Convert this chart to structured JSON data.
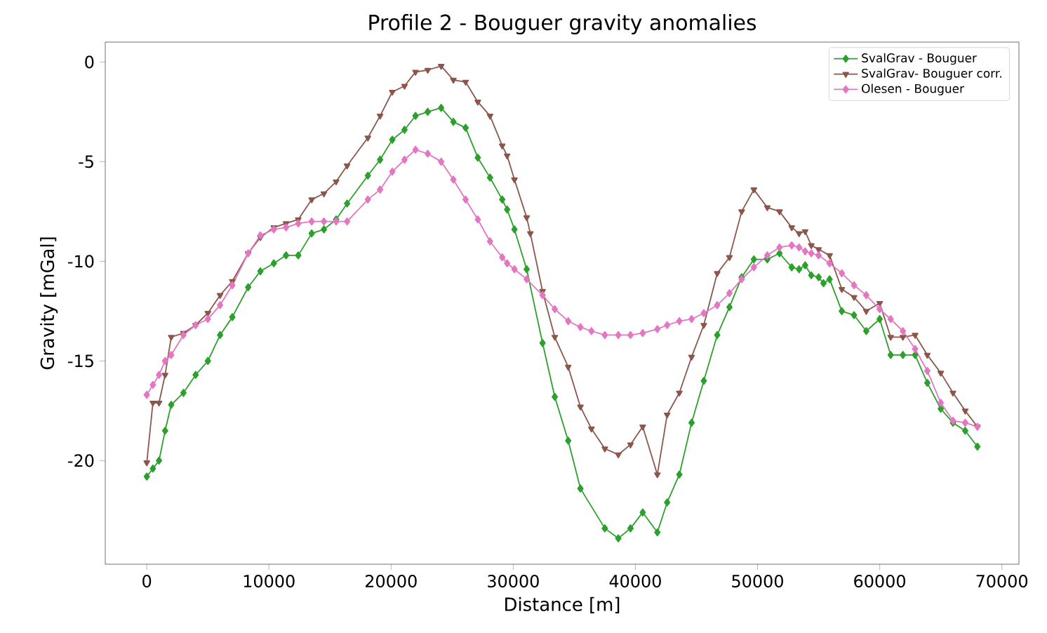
{
  "chart_data": {
    "type": "line",
    "title": "Profile 2 - Bouguer gravity anomalies",
    "xlabel": "Distance [m]",
    "ylabel": "Gravity [mGal]",
    "xlim": [
      -3400,
      71400
    ],
    "ylim": [
      -25.2,
      1.0
    ],
    "xticks": [
      0,
      10000,
      20000,
      30000,
      40000,
      50000,
      60000,
      70000
    ],
    "yticks": [
      -20,
      -15,
      -10,
      -5,
      0
    ],
    "grid": false,
    "legend": "top right",
    "line_style": "solid",
    "series": [
      {
        "name": "SvalGrav - Bouguer",
        "color": "#2ca02c",
        "marker": "diamond",
        "x": [
          0,
          500,
          1000,
          1500,
          2000,
          3000,
          4000,
          5000,
          6000,
          7000,
          8300,
          9300,
          10400,
          11400,
          12400,
          13500,
          14500,
          15500,
          16400,
          18100,
          19100,
          20100,
          21100,
          22000,
          23000,
          24100,
          25100,
          26100,
          27100,
          28100,
          29100,
          29500,
          30100,
          31100,
          32400,
          33400,
          34500,
          35500,
          37500,
          38600,
          39600,
          40600,
          41800,
          42600,
          43600,
          44600,
          45600,
          46700,
          47700,
          48700,
          49700,
          50800,
          51800,
          52800,
          53400,
          53900,
          54400,
          55000,
          55400,
          55900,
          56900,
          57900,
          58900,
          60000,
          60900,
          61900,
          62900,
          63900,
          65000,
          66000,
          67000,
          68000
        ],
        "values": [
          -20.8,
          -20.4,
          -20.0,
          -18.5,
          -17.2,
          -16.6,
          -15.7,
          -15.0,
          -13.7,
          -12.8,
          -11.3,
          -10.5,
          -10.1,
          -9.7,
          -9.7,
          -8.6,
          -8.4,
          -7.9,
          -7.1,
          -5.7,
          -4.9,
          -3.9,
          -3.4,
          -2.7,
          -2.5,
          -2.3,
          -3.0,
          -3.3,
          -4.8,
          -5.8,
          -6.9,
          -7.4,
          -8.4,
          -10.4,
          -14.1,
          -16.8,
          -19.0,
          -21.4,
          -23.4,
          -23.9,
          -23.4,
          -22.6,
          -23.6,
          -22.1,
          -20.7,
          -18.1,
          -16.0,
          -13.7,
          -12.3,
          -10.8,
          -9.9,
          -9.9,
          -9.6,
          -10.3,
          -10.4,
          -10.2,
          -10.7,
          -10.8,
          -11.1,
          -10.9,
          -12.5,
          -12.7,
          -13.5,
          -12.9,
          -14.7,
          -14.7,
          -14.7,
          -16.1,
          -17.4,
          -18.1,
          -18.5,
          -19.3
        ]
      },
      {
        "name": "SvalGrav- Bouguer corr.",
        "color": "#8c564b",
        "marker": "triangle",
        "x": [
          0,
          500,
          1000,
          1500,
          2000,
          3000,
          4000,
          5000,
          6000,
          7000,
          8300,
          9300,
          10400,
          11400,
          12400,
          13500,
          14500,
          15500,
          16400,
          18100,
          19100,
          20100,
          21100,
          22000,
          23000,
          24100,
          25100,
          26100,
          27100,
          28100,
          29100,
          29500,
          30100,
          31100,
          31400,
          32400,
          33400,
          34500,
          35500,
          36400,
          37500,
          38600,
          39600,
          40600,
          41800,
          42600,
          43600,
          44600,
          45600,
          46700,
          47700,
          48700,
          49700,
          50800,
          51800,
          52800,
          53400,
          53900,
          54400,
          55000,
          55900,
          56900,
          57900,
          58900,
          60000,
          60900,
          61900,
          62900,
          63900,
          65000,
          66000,
          67000,
          68000
        ],
        "values": [
          -20.1,
          -17.1,
          -17.1,
          -15.7,
          -13.8,
          -13.6,
          -13.2,
          -12.6,
          -11.7,
          -11.0,
          -9.6,
          -8.8,
          -8.3,
          -8.1,
          -7.9,
          -6.9,
          -6.6,
          -6.0,
          -5.2,
          -3.8,
          -2.7,
          -1.5,
          -1.2,
          -0.5,
          -0.4,
          -0.2,
          -0.9,
          -1.0,
          -2.0,
          -2.7,
          -4.2,
          -4.7,
          -5.9,
          -7.8,
          -8.6,
          -11.5,
          -13.8,
          -15.3,
          -17.3,
          -18.4,
          -19.4,
          -19.7,
          -19.2,
          -18.3,
          -20.7,
          -17.7,
          -16.6,
          -14.8,
          -13.2,
          -10.6,
          -9.8,
          -7.5,
          -6.4,
          -7.3,
          -7.5,
          -8.3,
          -8.6,
          -8.5,
          -9.2,
          -9.4,
          -9.7,
          -11.4,
          -11.8,
          -12.5,
          -12.1,
          -13.8,
          -13.8,
          -13.7,
          -14.7,
          -15.6,
          -16.6,
          -17.5,
          -18.3
        ]
      },
      {
        "name": "Olesen - Bouguer",
        "color": "#e377c2",
        "marker": "diamond",
        "x": [
          0,
          500,
          1000,
          1500,
          2000,
          3000,
          4000,
          5000,
          6000,
          7000,
          8300,
          9300,
          10400,
          11400,
          12400,
          13500,
          14500,
          15500,
          16400,
          18100,
          19100,
          20100,
          21100,
          22000,
          23000,
          24100,
          25100,
          26100,
          27100,
          28100,
          29100,
          29500,
          30100,
          31100,
          32400,
          33400,
          34500,
          35500,
          36400,
          37500,
          38600,
          39600,
          40600,
          41800,
          42600,
          43600,
          44600,
          45600,
          46700,
          47700,
          48700,
          49700,
          50800,
          51800,
          52800,
          53400,
          53900,
          54400,
          55000,
          55900,
          56900,
          57900,
          58900,
          60000,
          60900,
          61900,
          62900,
          63900,
          65000,
          66000,
          67000,
          68000
        ],
        "values": [
          -16.7,
          -16.2,
          -15.7,
          -15.0,
          -14.7,
          -13.7,
          -13.2,
          -12.9,
          -12.2,
          -11.2,
          -9.6,
          -8.7,
          -8.4,
          -8.3,
          -8.1,
          -8.0,
          -8.0,
          -8.0,
          -8.0,
          -6.9,
          -6.4,
          -5.5,
          -4.9,
          -4.4,
          -4.6,
          -5.0,
          -5.9,
          -6.9,
          -7.9,
          -9.0,
          -9.8,
          -10.1,
          -10.4,
          -10.9,
          -11.7,
          -12.4,
          -13.0,
          -13.3,
          -13.5,
          -13.7,
          -13.7,
          -13.7,
          -13.6,
          -13.4,
          -13.2,
          -13.0,
          -12.9,
          -12.6,
          -12.2,
          -11.6,
          -10.9,
          -10.3,
          -9.7,
          -9.3,
          -9.2,
          -9.3,
          -9.5,
          -9.6,
          -9.7,
          -10.1,
          -10.6,
          -11.2,
          -11.7,
          -12.4,
          -12.9,
          -13.5,
          -14.4,
          -15.5,
          -17.1,
          -18.0,
          -18.1,
          -18.3
        ]
      }
    ]
  }
}
